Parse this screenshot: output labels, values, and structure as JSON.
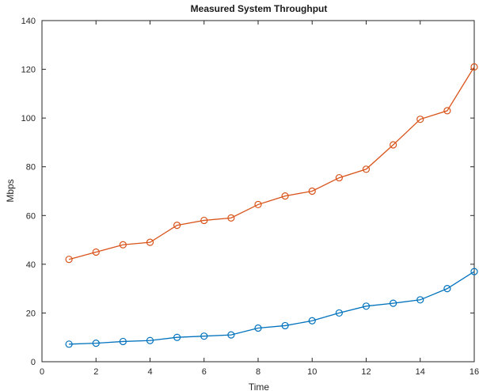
{
  "chart_data": {
    "type": "line",
    "title": "Measured System Throughput",
    "xlabel": "Time",
    "ylabel": "Mbps",
    "xlim": [
      0,
      16
    ],
    "ylim": [
      0,
      140
    ],
    "xticks": [
      0,
      2,
      4,
      6,
      8,
      10,
      12,
      14,
      16
    ],
    "yticks": [
      0,
      20,
      40,
      60,
      80,
      100,
      120,
      140
    ],
    "grid": false,
    "marker": "circle",
    "x": [
      1,
      2,
      3,
      4,
      5,
      6,
      7,
      8,
      9,
      10,
      11,
      12,
      13,
      14,
      15,
      16
    ],
    "series": [
      {
        "color": "#d95319",
        "values": [
          42,
          45,
          48,
          49,
          56,
          58,
          59,
          64.5,
          68,
          70,
          75.5,
          79,
          89,
          99.5,
          103,
          121
        ]
      },
      {
        "color": "#0072bd",
        "values": [
          7.2,
          7.6,
          8.3,
          8.7,
          10,
          10.5,
          11,
          13.8,
          14.8,
          16.8,
          20,
          22.8,
          24,
          25.4,
          30,
          37
        ]
      }
    ]
  }
}
